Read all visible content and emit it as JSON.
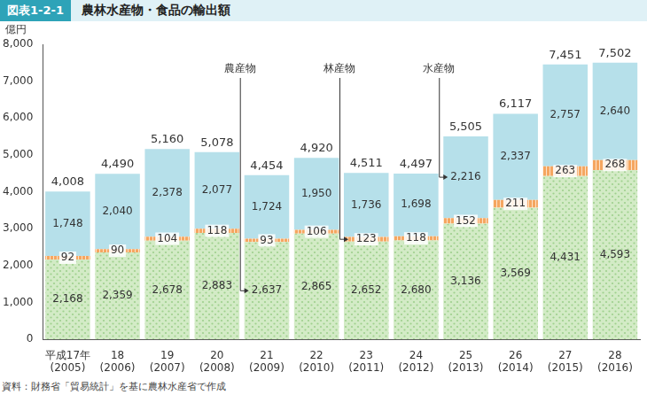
{
  "chart_data": {
    "type": "bar",
    "figure_label": "図表1-2-1",
    "title": "農林水産物・食品の輸出額",
    "y_label": "億円",
    "source": "資料：財務省「貿易統計」を基に農林水産省で作成",
    "categories": [
      [
        "平成17年",
        "(2005)"
      ],
      [
        "18",
        "(2006)"
      ],
      [
        "19",
        "(2007)"
      ],
      [
        "20",
        "(2008)"
      ],
      [
        "21",
        "(2009)"
      ],
      [
        "22",
        "(2010)"
      ],
      [
        "23",
        "(2011)"
      ],
      [
        "24",
        "(2012)"
      ],
      [
        "25",
        "(2013)"
      ],
      [
        "26",
        "(2014)"
      ],
      [
        "27",
        "(2015)"
      ],
      [
        "28",
        "(2016)"
      ]
    ],
    "series": [
      {
        "name": "農産物",
        "color": "#d3ebc6",
        "values": [
          2168,
          2359,
          2678,
          2883,
          2637,
          2865,
          2652,
          2680,
          3136,
          3569,
          4431,
          4593
        ],
        "value_labels": [
          "2,168",
          "2,359",
          "2,678",
          "2,883",
          "2,637",
          "2,865",
          "2,652",
          "2,680",
          "3,136",
          "3,569",
          "4,431",
          "4,593"
        ]
      },
      {
        "name": "林産物",
        "color": "#f5a660",
        "values": [
          92,
          90,
          104,
          118,
          93,
          106,
          123,
          118,
          152,
          211,
          263,
          268
        ]
      },
      {
        "name": "水産物",
        "color": "#b6e0ea",
        "values": [
          1748,
          2040,
          2378,
          2077,
          1724,
          1950,
          1736,
          1698,
          2216,
          2337,
          2757,
          2640
        ],
        "value_labels": [
          "1,748",
          "2,040",
          "2,378",
          "2,077",
          "1,724",
          "1,950",
          "1,736",
          "1,698",
          "2,216",
          "2,337",
          "2,757",
          "2,640"
        ]
      }
    ],
    "totals": {
      "values": [
        4008,
        4490,
        5160,
        5078,
        4454,
        4920,
        4511,
        4497,
        5505,
        6117,
        7451,
        7502
      ],
      "value_labels": [
        "4,008",
        "4,490",
        "5,160",
        "5,078",
        "4,454",
        "4,920",
        "4,511",
        "4,497",
        "5,505",
        "6,117",
        "7,451",
        "7,502"
      ]
    },
    "annotations": [
      {
        "text": "農産物",
        "series": "農産物",
        "at": 4
      },
      {
        "text": "林産物",
        "series": "林産物",
        "at": 6
      },
      {
        "text": "水産物",
        "series": "水産物",
        "at": 8
      }
    ],
    "ylim": [
      0,
      8000
    ],
    "yticks": [
      0,
      {
        "value": 1000,
        "label": "1,000"
      },
      {
        "value": 2000,
        "label": "2,000"
      },
      {
        "value": 3000,
        "label": "3,000"
      },
      {
        "value": 4000,
        "label": "4,000"
      },
      {
        "value": 5000,
        "label": "5,000"
      },
      {
        "value": 6000,
        "label": "6,000"
      },
      {
        "value": 7000,
        "label": "7,000"
      },
      {
        "value": 8000,
        "label": "8,000"
      }
    ],
    "stacked": true,
    "data_labels": true,
    "grid": false
  }
}
